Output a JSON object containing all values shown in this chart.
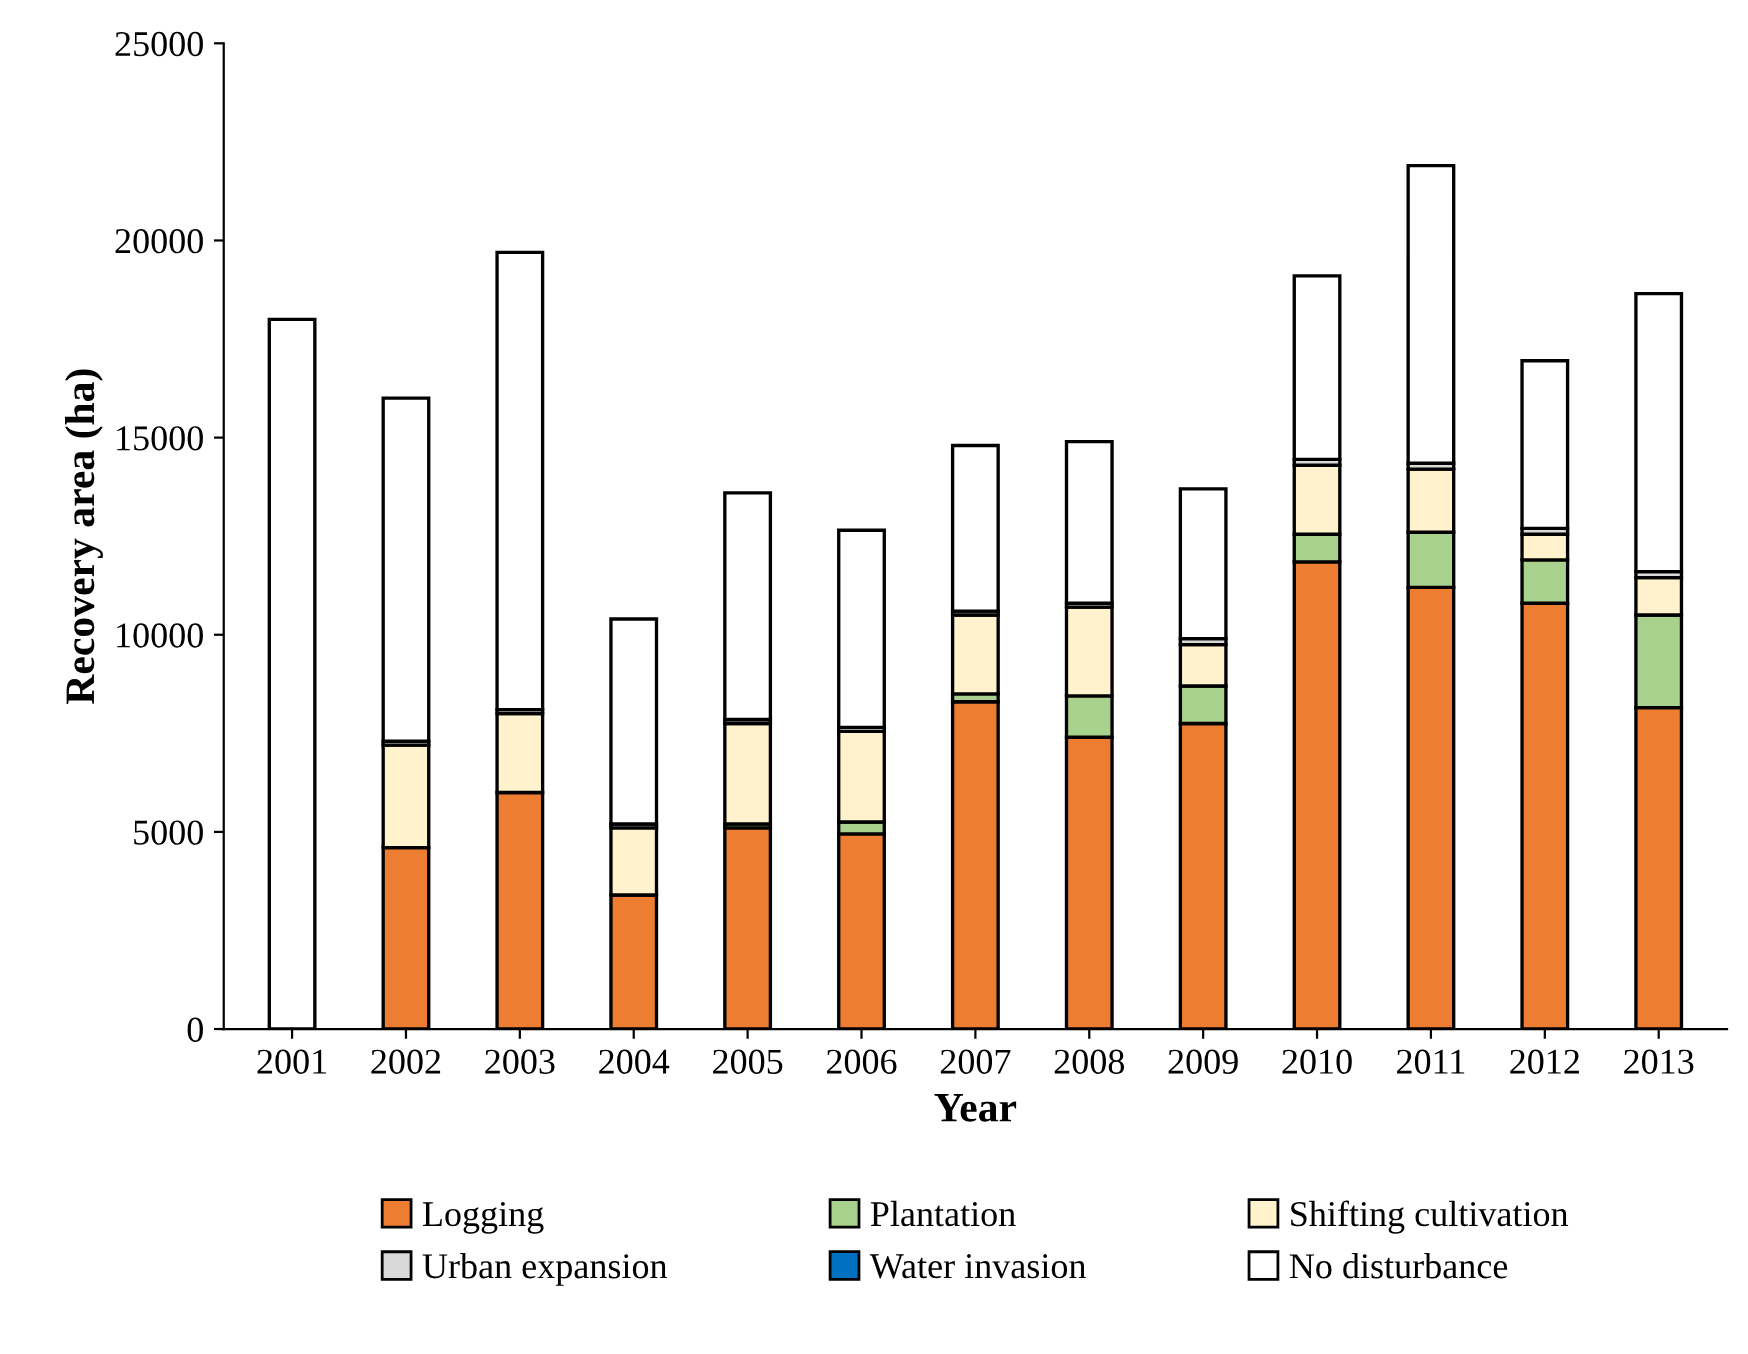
{
  "chart_data": {
    "type": "bar",
    "stacked": true,
    "xlabel": "Year",
    "ylabel": "Recovery area (ha)",
    "categories": [
      "2001",
      "2002",
      "2003",
      "2004",
      "2005",
      "2006",
      "2007",
      "2008",
      "2009",
      "2010",
      "2011",
      "2012",
      "2013"
    ],
    "series": [
      {
        "name": "Logging",
        "color": "#ed7d31",
        "values": [
          null,
          4600,
          6000,
          3400,
          5100,
          4950,
          8300,
          7400,
          7750,
          11850,
          11200,
          10800,
          8150
        ]
      },
      {
        "name": "Plantation",
        "color": "#a9d18e",
        "values": [
          null,
          null,
          null,
          null,
          100,
          300,
          200,
          1050,
          950,
          700,
          1400,
          1100,
          2350
        ]
      },
      {
        "name": "Shifting cultivation",
        "color": "#fff2cc",
        "values": [
          null,
          2600,
          2000,
          1700,
          2550,
          2300,
          2000,
          2250,
          1050,
          1750,
          1600,
          650,
          950
        ]
      },
      {
        "name": "Urban expansion",
        "color": "#d9d9d9",
        "values": [
          null,
          100,
          100,
          100,
          100,
          100,
          100,
          100,
          150,
          150,
          150,
          150,
          150
        ]
      },
      {
        "name": "Water invasion",
        "color": "#0070c0",
        "values": [
          null,
          null,
          null,
          null,
          null,
          null,
          null,
          null,
          null,
          null,
          null,
          null,
          null
        ]
      },
      {
        "name": "No disturbance",
        "color": "#ffffff",
        "values": [
          18000,
          8700,
          11600,
          5200,
          5750,
          5000,
          4200,
          4100,
          3800,
          4650,
          7550,
          4250,
          7050
        ]
      }
    ],
    "ylim": [
      0,
      25000
    ],
    "yticks": [
      0,
      5000,
      10000,
      15000,
      20000,
      25000
    ],
    "grid": false,
    "legend": "bottom"
  }
}
